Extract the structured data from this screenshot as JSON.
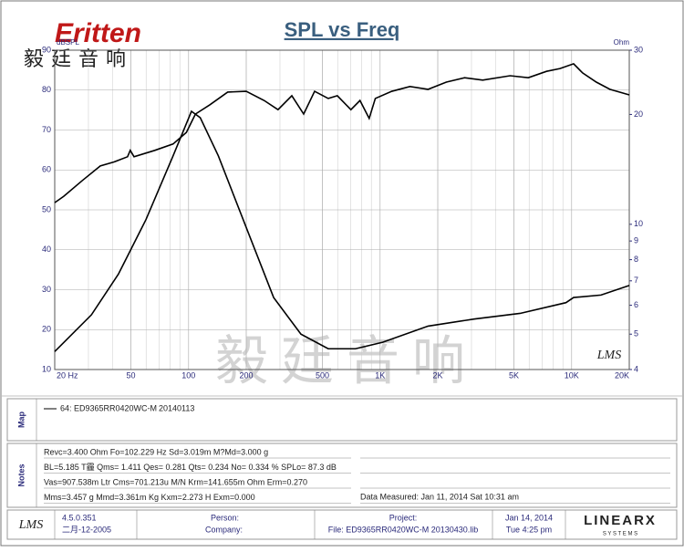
{
  "logo": {
    "brand": "Eritten",
    "chinese": "毅廷音响"
  },
  "chart_data": {
    "type": "line",
    "title": "SPL vs Freq",
    "y_label": "dBSPL",
    "y2_label": "Ohm",
    "watermark": "毅廷音响",
    "badge": "LMS",
    "xscale": "log",
    "y2scale": "log",
    "grid": true,
    "xlim": [
      20,
      20000
    ],
    "xticks": [
      {
        "value": 20,
        "label": "20 Hz"
      },
      50,
      100,
      200,
      500,
      {
        "value": 1000,
        "label": "1K"
      },
      {
        "value": 2000,
        "label": "2K"
      },
      {
        "value": 5000,
        "label": "5K"
      },
      {
        "value": 10000,
        "label": "10K"
      },
      {
        "value": 20000,
        "label": "20K"
      }
    ],
    "ylim": [
      10,
      90
    ],
    "yticks": [
      10,
      20,
      30,
      40,
      50,
      60,
      70,
      80,
      90
    ],
    "y2lim": [
      4,
      30
    ],
    "y2ticks": [
      4,
      5,
      6,
      7,
      8,
      9,
      10,
      20,
      30
    ],
    "series": [
      {
        "color": "#000000",
        "x": [
          20,
          22.3,
          27.8,
          34.6,
          40.8,
          48,
          49.6,
          51.9,
          66.6,
          83,
          97.4,
          108.6,
          129,
          160,
          200,
          248,
          293,
          346,
          399,
          455,
          536,
          598,
          704,
          785,
          877,
          944,
          1151,
          1431,
          1781,
          2217,
          2759,
          3434,
          4772,
          5940,
          7393,
          8700,
          10240,
          11410,
          13460,
          15840,
          20000
        ],
        "values": [
          51.8,
          53.4,
          57.3,
          61,
          62,
          63.3,
          64.9,
          63.3,
          64.9,
          66.5,
          69.4,
          74,
          76.3,
          79.5,
          79.7,
          77.4,
          75.1,
          78.6,
          74,
          79.7,
          77.9,
          78.6,
          75.1,
          77.4,
          72.9,
          77.9,
          79.7,
          80.9,
          80.2,
          82,
          83.1,
          82.5,
          83.6,
          83.1,
          84.7,
          85.4,
          86.6,
          84.3,
          82,
          80.2,
          78.8
        ]
      },
      {
        "color": "#000000",
        "axis": "y2",
        "x": [
          20,
          31.1,
          43,
          59.9,
          83,
          103.5,
          115,
          143,
          200,
          278,
          386,
          536,
          743,
          1031,
          1781,
          3095,
          5380,
          9345,
          10240,
          14230,
          20000
        ],
        "values": [
          4.48,
          5.65,
          7.3,
          10.3,
          15.4,
          20.4,
          19.6,
          15.4,
          9.8,
          6.3,
          5.0,
          4.56,
          4.56,
          4.75,
          5.26,
          5.5,
          5.7,
          6.1,
          6.3,
          6.4,
          6.8
        ]
      }
    ]
  },
  "map": {
    "label": "Map",
    "entry": "64: ED9365RR0420WC-M",
    "date": "20140113"
  },
  "notes": {
    "label": "Notes",
    "lines": [
      "Revc=3.400 Ohm  Fo=102.229 Hz  Sd=3.019m M?Md=3.000 g",
      "BL=5.185 T霾  Qms= 1.411  Qes= 0.281  Qts= 0.234  No= 0.334 %  SPLo= 87.3 dB",
      "Vas=907.538m Ltr  Cms=701.213u M/N  Krm=141.655m Ohm  Erm=0.270",
      "Mms=3.457 g  Mmd=3.361m Kg  Kxm=2.273 H  Exm=0.000"
    ],
    "measured": "Data Measured: Jan 11, 2014  Sat 10:31 am"
  },
  "footer": {
    "logo": "LMS",
    "version": "4.5.0.351",
    "build_date": "二月-12-2005",
    "person": "Person:",
    "company": "Company:",
    "project": "Project:",
    "file": "File: ED9365RR0420WC-M  20130430.lib",
    "date": "Jan 14, 2014",
    "time": "Tue  4:25 pm",
    "brand": "LINEARX",
    "brand_sub": "S Y S T E M S"
  }
}
